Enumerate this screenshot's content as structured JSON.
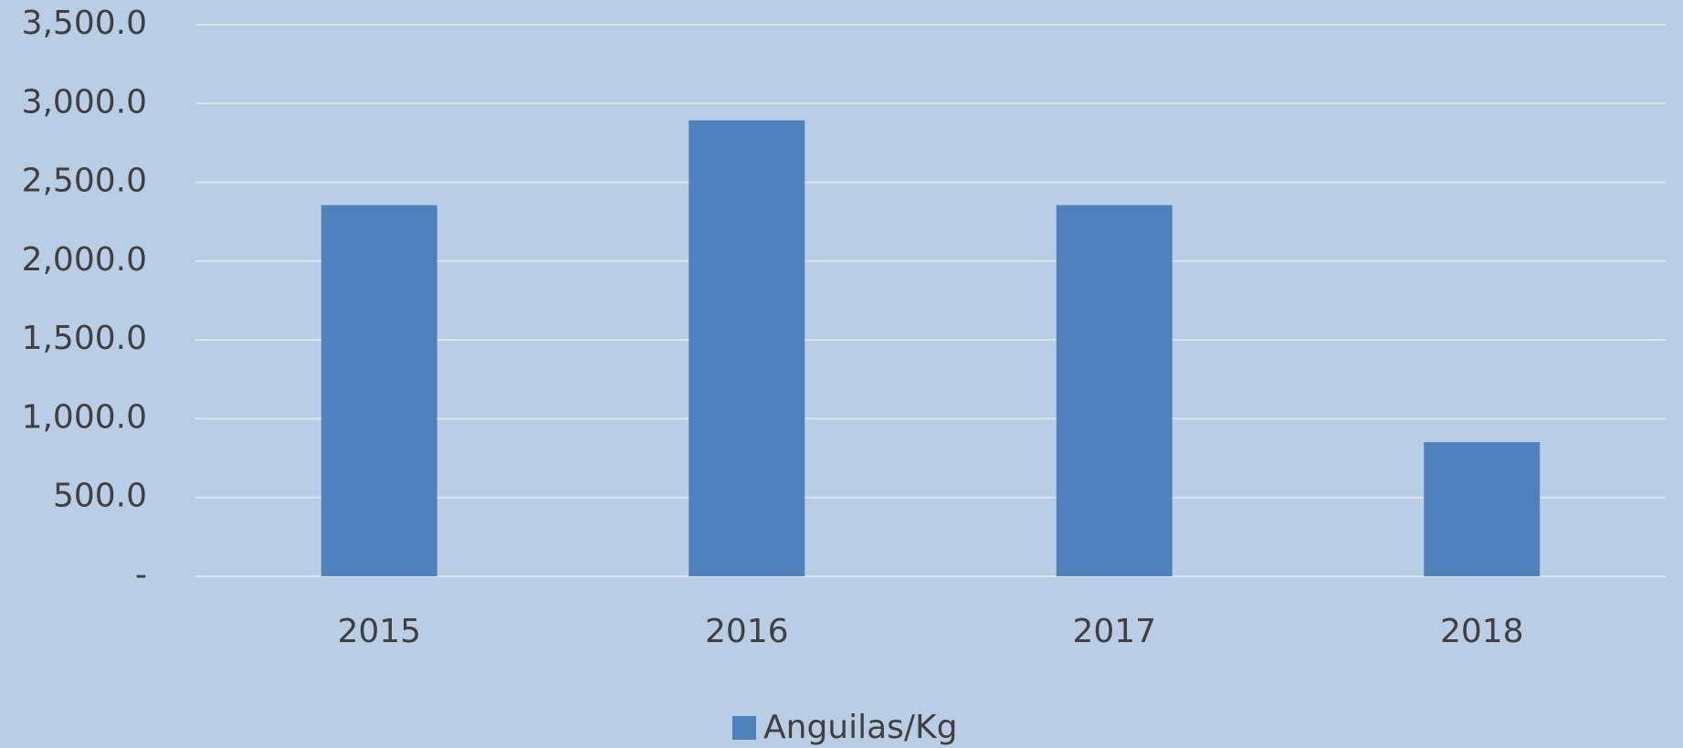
{
  "chart_data": {
    "type": "bar",
    "categories": [
      "2015",
      "2016",
      "2017",
      "2018"
    ],
    "series": [
      {
        "name": "Anguilas/Kg",
        "color": "#4f81bd",
        "values": [
          2355,
          2893,
          2355,
          851
        ]
      }
    ],
    "ylim": [
      0,
      3500
    ],
    "yticks": [
      {
        "value": 0,
        "label": "-"
      },
      {
        "value": 500,
        "label": "500.0"
      },
      {
        "value": 1000,
        "label": "1,000.0"
      },
      {
        "value": 1500,
        "label": "1,500.0"
      },
      {
        "value": 2000,
        "label": "2,000.0"
      },
      {
        "value": 2500,
        "label": "2,500.0"
      },
      {
        "value": 3000,
        "label": "3,000.0"
      },
      {
        "value": 3500,
        "label": "3,500.0"
      }
    ],
    "grid": true,
    "legend": "bottom"
  }
}
